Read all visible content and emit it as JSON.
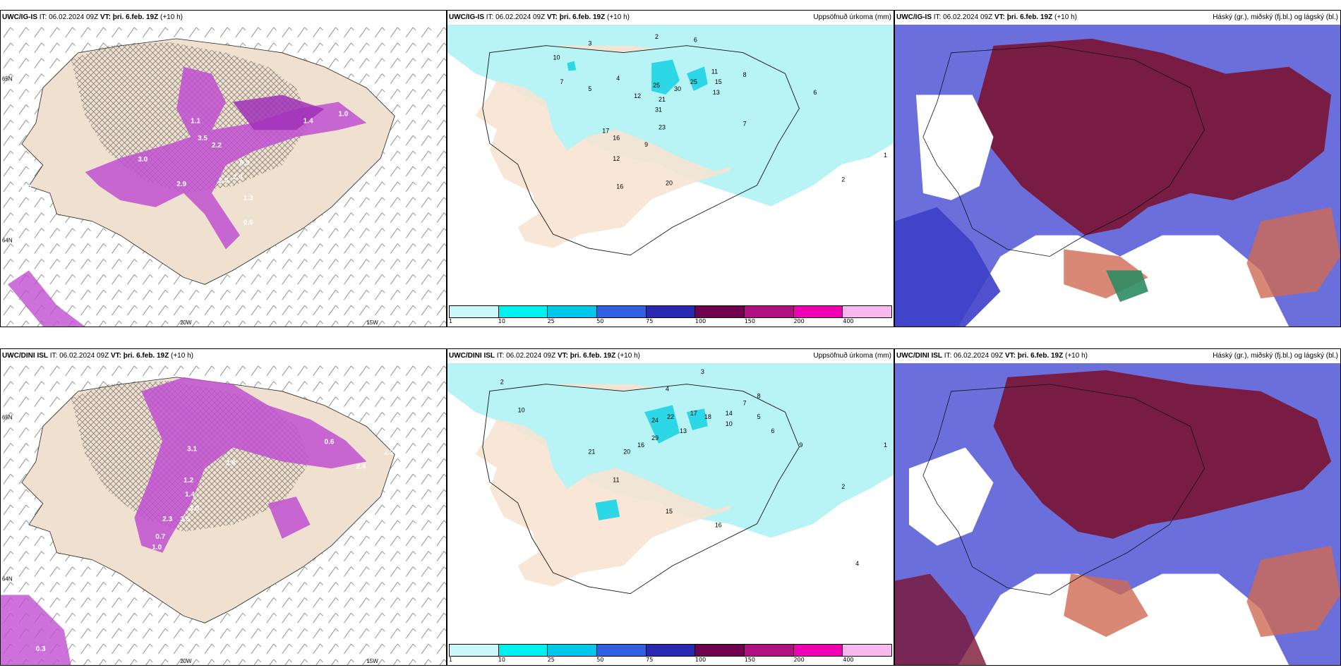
{
  "colors": {
    "land": "#f0e0cf",
    "precip_light": "#b8f3f5",
    "precip_med": "#2cd7e6",
    "snow_magenta": "#c04fd1",
    "cloud_high": "#7a1535",
    "cloud_mid": "#3c3fc7",
    "cloud_low": "#5a5fd8"
  },
  "rows": [
    {
      "panels": [
        {
          "model": "UWC/IG-IS",
          "it_label": "IT:",
          "it_value": "06.02.2024 09Z",
          "vt_label": "VT:",
          "vt_value": "þri. 6.feb. 19Z",
          "lead": "(+10 h)",
          "right_title": "",
          "axis": {
            "lon1": "20W",
            "lon2": "15W",
            "lat1": "65N",
            "lat2": "64N"
          },
          "values": [
            "1.1",
            "2.6",
            "3.5",
            "2.9",
            "1.3",
            "0.6",
            "1.4",
            "1.0",
            "2.0",
            "0.9",
            "0.3",
            "3.0",
            "2.2"
          ]
        },
        {
          "model": "UWC/IG-IS",
          "it_label": "IT:",
          "it_value": "06.02.2024 09Z",
          "vt_label": "VT:",
          "vt_value": "þri. 6.feb. 19Z",
          "lead": "(+10 h)",
          "right_title": "Uppsöfnuð úrkoma (mm)",
          "values": [
            "3",
            "2",
            "6",
            "10",
            "12",
            "7",
            "4",
            "5",
            "8",
            "25",
            "21",
            "31",
            "30",
            "25",
            "15",
            "13",
            "11",
            "17",
            "16",
            "12",
            "23",
            "20",
            "16",
            "7",
            "9",
            "6",
            "2",
            "1"
          ]
        },
        {
          "model": "UWC/IG-IS",
          "it_label": "IT:",
          "it_value": "06.02.2024 09Z",
          "vt_label": "VT:",
          "vt_value": "þri. 6.feb. 19Z",
          "lead": "(+10 h)",
          "right_title": "Háský (gr.), miðský (fj.bl.) og lágský (bl.)"
        }
      ]
    },
    {
      "panels": [
        {
          "model": "UWC/DINI ISL",
          "it_label": "IT:",
          "it_value": "06.02.2024 09Z",
          "vt_label": "VT:",
          "vt_value": "þri. 6.feb. 19Z",
          "lead": "(+10 h)",
          "right_title": "",
          "axis": {
            "lon1": "20W",
            "lon2": "15W",
            "lat1": "65N",
            "lat2": "64N"
          },
          "values": [
            "3.1",
            "1.2",
            "1.4",
            "3.0",
            "2.3",
            "3.5",
            "0.7",
            "2.8",
            "1.0",
            "2.2",
            "2.4",
            "0.6",
            "0.3"
          ]
        },
        {
          "model": "UWC/DINI ISL",
          "it_label": "IT:",
          "it_value": "06.02.2024 09Z",
          "vt_label": "VT:",
          "vt_value": "þri. 6.feb. 19Z",
          "lead": "(+10 h)",
          "right_title": "Uppsöfnuð úrkoma (mm)",
          "values": [
            "2",
            "3",
            "4",
            "10",
            "24",
            "22",
            "17",
            "18",
            "16",
            "29",
            "13",
            "20",
            "21",
            "11",
            "15",
            "16",
            "14",
            "10",
            "7",
            "5",
            "6",
            "8",
            "9",
            "2",
            "1",
            "4"
          ]
        },
        {
          "model": "UWC/DINI ISL",
          "it_label": "IT:",
          "it_value": "06.02.2024 09Z",
          "vt_label": "VT:",
          "vt_value": "þri. 6.feb. 19Z",
          "lead": "(+10 h)",
          "right_title": "Háský (gr.), miðský (fj.bl.) og lágský (bl.)"
        }
      ]
    }
  ],
  "colorbar": {
    "labels": [
      "1",
      "10",
      "25",
      "50",
      "75",
      "100",
      "150",
      "200",
      "400"
    ],
    "colors": [
      "#c8f8fa",
      "#00f0f0",
      "#00c8e8",
      "#3060e0",
      "#2828b0",
      "#700050",
      "#b01080",
      "#f000b0",
      "#f8b8f0"
    ]
  }
}
